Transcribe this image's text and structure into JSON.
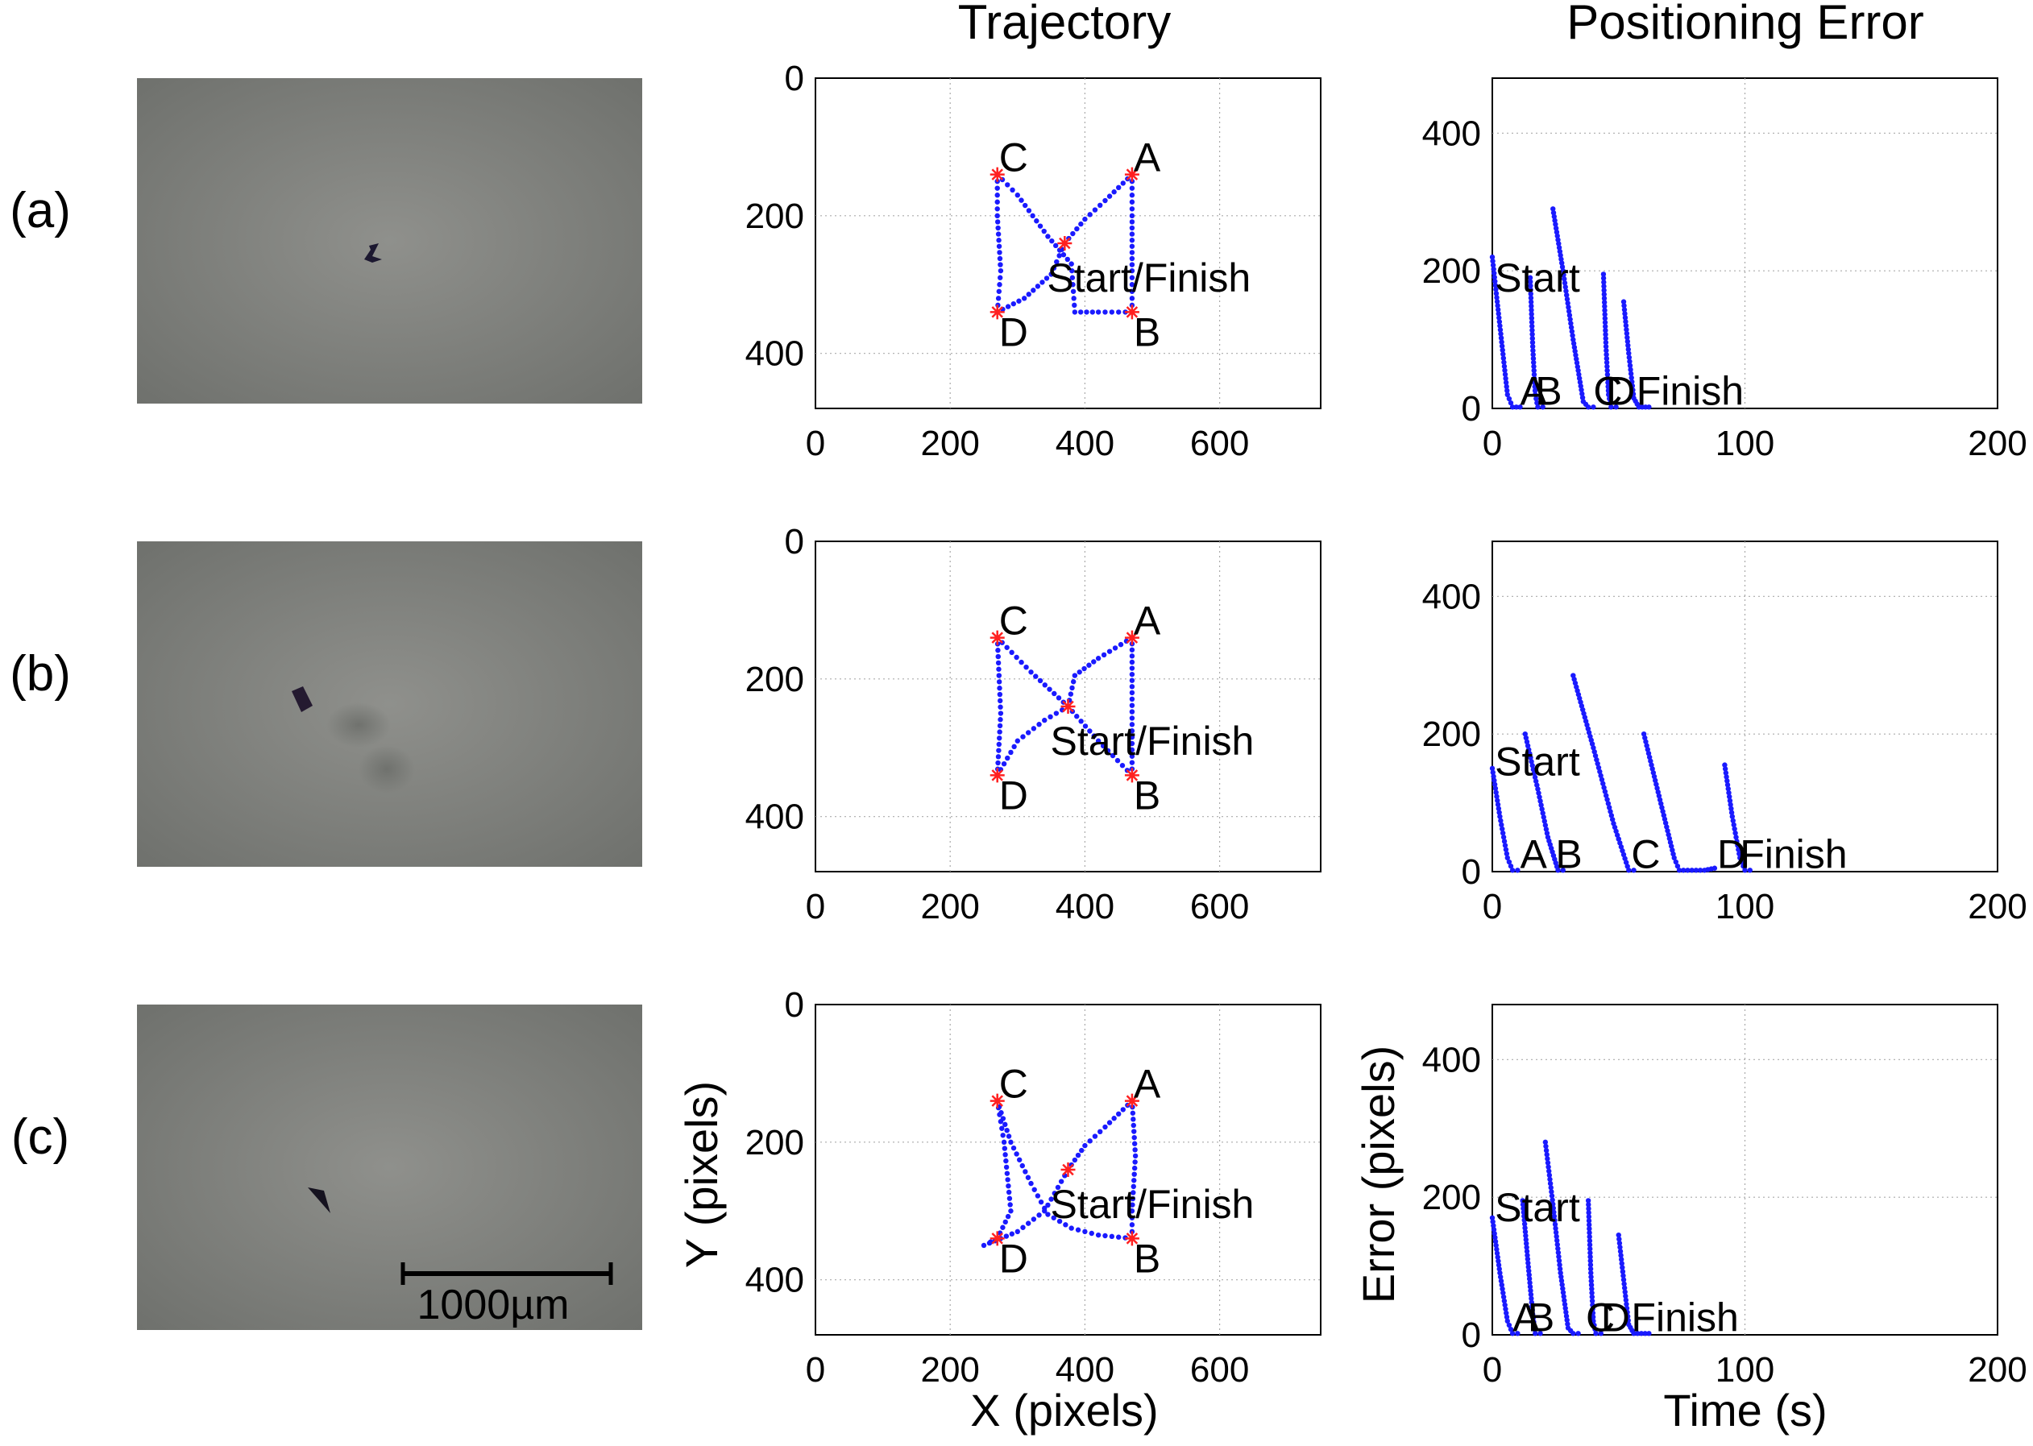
{
  "column_titles": {
    "trajectory": "Trajectory",
    "error": "Positioning Error"
  },
  "row_labels": [
    "(a)",
    "(b)",
    "(c)"
  ],
  "scale_bar": {
    "label": "1000µm"
  },
  "axis_labels": {
    "trajectory_x": "X (pixels)",
    "trajectory_y": "Y (pixels)",
    "error_x": "Time (s)",
    "error_y": "Error (pixels)"
  },
  "colors": {
    "trace": "#1a1aff",
    "marker": "#ff2020",
    "grid": "#aaaaaa",
    "photo": "#8c8d8a"
  },
  "chart_data": [
    {
      "type": "scatter",
      "row": "(a)",
      "title": "Trajectory",
      "xlim": [
        0,
        750
      ],
      "ylim": [
        0,
        480
      ],
      "y_inverted": true,
      "xticks": [
        0,
        200,
        400,
        600
      ],
      "yticks": [
        0,
        200,
        400
      ],
      "markers": [
        {
          "name": "C",
          "x": 270,
          "y": 140
        },
        {
          "name": "A",
          "x": 470,
          "y": 140
        },
        {
          "name": "Start/Finish",
          "x": 370,
          "y": 240
        },
        {
          "name": "D",
          "x": 270,
          "y": 340
        },
        {
          "name": "B",
          "x": 470,
          "y": 340
        }
      ],
      "path": [
        [
          370,
          240
        ],
        [
          400,
          205
        ],
        [
          430,
          178
        ],
        [
          470,
          140
        ],
        [
          470,
          200
        ],
        [
          470,
          280
        ],
        [
          470,
          340
        ],
        [
          420,
          340
        ],
        [
          385,
          340
        ],
        [
          380,
          270
        ],
        [
          345,
          230
        ],
        [
          300,
          170
        ],
        [
          270,
          140
        ],
        [
          270,
          200
        ],
        [
          275,
          280
        ],
        [
          270,
          340
        ],
        [
          310,
          320
        ],
        [
          350,
          285
        ],
        [
          370,
          240
        ]
      ]
    },
    {
      "type": "line",
      "row": "(a)",
      "title": "Positioning Error",
      "xlim": [
        0,
        200
      ],
      "ylim": [
        0,
        480
      ],
      "xticks": [
        0,
        100,
        200
      ],
      "yticks": [
        0,
        200,
        400
      ],
      "labels": [
        {
          "text": "Start",
          "x": 1,
          "y": 170
        },
        {
          "text": "A",
          "x": 11,
          "y": 5
        },
        {
          "text": "B",
          "x": 17,
          "y": 5
        },
        {
          "text": "C",
          "x": 40,
          "y": 5
        },
        {
          "text": "D",
          "x": 45,
          "y": 5
        },
        {
          "text": "Finish",
          "x": 57,
          "y": 5
        }
      ],
      "segments": [
        [
          [
            0,
            220
          ],
          [
            3,
            120
          ],
          [
            6,
            20
          ],
          [
            8,
            2
          ],
          [
            11,
            2
          ]
        ],
        [
          [
            15,
            190
          ],
          [
            16,
            90
          ],
          [
            17,
            20
          ],
          [
            18,
            2
          ],
          [
            20,
            2
          ]
        ],
        [
          [
            24,
            290
          ],
          [
            28,
            200
          ],
          [
            32,
            100
          ],
          [
            36,
            10
          ],
          [
            38,
            2
          ],
          [
            40,
            2
          ]
        ],
        [
          [
            44,
            195
          ],
          [
            45,
            90
          ],
          [
            46,
            20
          ],
          [
            47,
            2
          ],
          [
            49,
            2
          ]
        ],
        [
          [
            52,
            155
          ],
          [
            54,
            80
          ],
          [
            56,
            15
          ],
          [
            58,
            2
          ],
          [
            62,
            2
          ]
        ]
      ]
    },
    {
      "type": "scatter",
      "row": "(b)",
      "title": "Trajectory",
      "xlim": [
        0,
        750
      ],
      "ylim": [
        0,
        480
      ],
      "y_inverted": true,
      "xticks": [
        0,
        200,
        400,
        600
      ],
      "yticks": [
        0,
        200,
        400
      ],
      "markers": [
        {
          "name": "C",
          "x": 270,
          "y": 140
        },
        {
          "name": "A",
          "x": 470,
          "y": 140
        },
        {
          "name": "Start/Finish",
          "x": 375,
          "y": 240
        },
        {
          "name": "D",
          "x": 270,
          "y": 340
        },
        {
          "name": "B",
          "x": 470,
          "y": 340
        }
      ],
      "path": [
        [
          375,
          240
        ],
        [
          385,
          195
        ],
        [
          420,
          170
        ],
        [
          470,
          140
        ],
        [
          470,
          220
        ],
        [
          470,
          340
        ],
        [
          420,
          290
        ],
        [
          375,
          240
        ],
        [
          320,
          190
        ],
        [
          270,
          140
        ],
        [
          275,
          250
        ],
        [
          270,
          340
        ],
        [
          300,
          290
        ],
        [
          340,
          260
        ],
        [
          375,
          240
        ]
      ]
    },
    {
      "type": "line",
      "row": "(b)",
      "title": "Positioning Error",
      "xlim": [
        0,
        200
      ],
      "ylim": [
        0,
        480
      ],
      "xticks": [
        0,
        100,
        200
      ],
      "yticks": [
        0,
        200,
        400
      ],
      "labels": [
        {
          "text": "Start",
          "x": 1,
          "y": 140
        },
        {
          "text": "A",
          "x": 11,
          "y": 5
        },
        {
          "text": "B",
          "x": 25,
          "y": 5
        },
        {
          "text": "C",
          "x": 55,
          "y": 5
        },
        {
          "text": "D",
          "x": 89,
          "y": 5
        },
        {
          "text": "Finish",
          "x": 98,
          "y": 5
        }
      ],
      "segments": [
        [
          [
            0,
            150
          ],
          [
            3,
            80
          ],
          [
            6,
            20
          ],
          [
            8,
            2
          ],
          [
            10,
            2
          ]
        ],
        [
          [
            13,
            200
          ],
          [
            18,
            120
          ],
          [
            22,
            50
          ],
          [
            26,
            2
          ],
          [
            28,
            2
          ]
        ],
        [
          [
            32,
            285
          ],
          [
            40,
            180
          ],
          [
            48,
            70
          ],
          [
            54,
            2
          ],
          [
            56,
            2
          ]
        ],
        [
          [
            60,
            200
          ],
          [
            66,
            110
          ],
          [
            72,
            20
          ],
          [
            74,
            2
          ],
          [
            84,
            2
          ],
          [
            88,
            5
          ]
        ],
        [
          [
            92,
            155
          ],
          [
            95,
            80
          ],
          [
            98,
            20
          ],
          [
            100,
            2
          ],
          [
            102,
            2
          ]
        ]
      ]
    },
    {
      "type": "scatter",
      "row": "(c)",
      "title": "Trajectory",
      "xlim": [
        0,
        750
      ],
      "ylim": [
        0,
        480
      ],
      "y_inverted": true,
      "xticks": [
        0,
        200,
        400,
        600
      ],
      "yticks": [
        0,
        200,
        400
      ],
      "markers": [
        {
          "name": "C",
          "x": 270,
          "y": 140
        },
        {
          "name": "A",
          "x": 470,
          "y": 140
        },
        {
          "name": "Start/Finish",
          "x": 375,
          "y": 240
        },
        {
          "name": "D",
          "x": 270,
          "y": 340
        },
        {
          "name": "B",
          "x": 470,
          "y": 340
        }
      ],
      "path": [
        [
          375,
          240
        ],
        [
          400,
          205
        ],
        [
          430,
          178
        ],
        [
          470,
          140
        ],
        [
          475,
          220
        ],
        [
          470,
          300
        ],
        [
          470,
          340
        ],
        [
          420,
          335
        ],
        [
          380,
          325
        ],
        [
          345,
          305
        ],
        [
          320,
          260
        ],
        [
          290,
          200
        ],
        [
          270,
          140
        ],
        [
          280,
          200
        ],
        [
          290,
          300
        ],
        [
          270,
          340
        ],
        [
          250,
          350
        ],
        [
          300,
          330
        ],
        [
          340,
          300
        ],
        [
          375,
          240
        ]
      ]
    },
    {
      "type": "line",
      "row": "(c)",
      "title": "Positioning Error",
      "xlim": [
        0,
        200
      ],
      "ylim": [
        0,
        480
      ],
      "xticks": [
        0,
        100,
        200
      ],
      "yticks": [
        0,
        200,
        400
      ],
      "labels": [
        {
          "text": "Start",
          "x": 1,
          "y": 165
        },
        {
          "text": "A",
          "x": 8,
          "y": 5
        },
        {
          "text": "B",
          "x": 14,
          "y": 5
        },
        {
          "text": "C",
          "x": 37,
          "y": 5
        },
        {
          "text": "D",
          "x": 43,
          "y": 5
        },
        {
          "text": "Finish",
          "x": 55,
          "y": 5
        }
      ],
      "segments": [
        [
          [
            0,
            170
          ],
          [
            3,
            90
          ],
          [
            6,
            20
          ],
          [
            8,
            2
          ],
          [
            10,
            2
          ]
        ],
        [
          [
            12,
            195
          ],
          [
            14,
            110
          ],
          [
            16,
            30
          ],
          [
            17,
            2
          ],
          [
            19,
            2
          ]
        ],
        [
          [
            21,
            280
          ],
          [
            24,
            190
          ],
          [
            27,
            90
          ],
          [
            30,
            10
          ],
          [
            32,
            2
          ],
          [
            34,
            2
          ]
        ],
        [
          [
            38,
            195
          ],
          [
            39,
            90
          ],
          [
            40,
            20
          ],
          [
            41,
            2
          ],
          [
            43,
            2
          ]
        ],
        [
          [
            50,
            145
          ],
          [
            52,
            80
          ],
          [
            54,
            15
          ],
          [
            56,
            2
          ],
          [
            62,
            2
          ]
        ]
      ]
    }
  ]
}
